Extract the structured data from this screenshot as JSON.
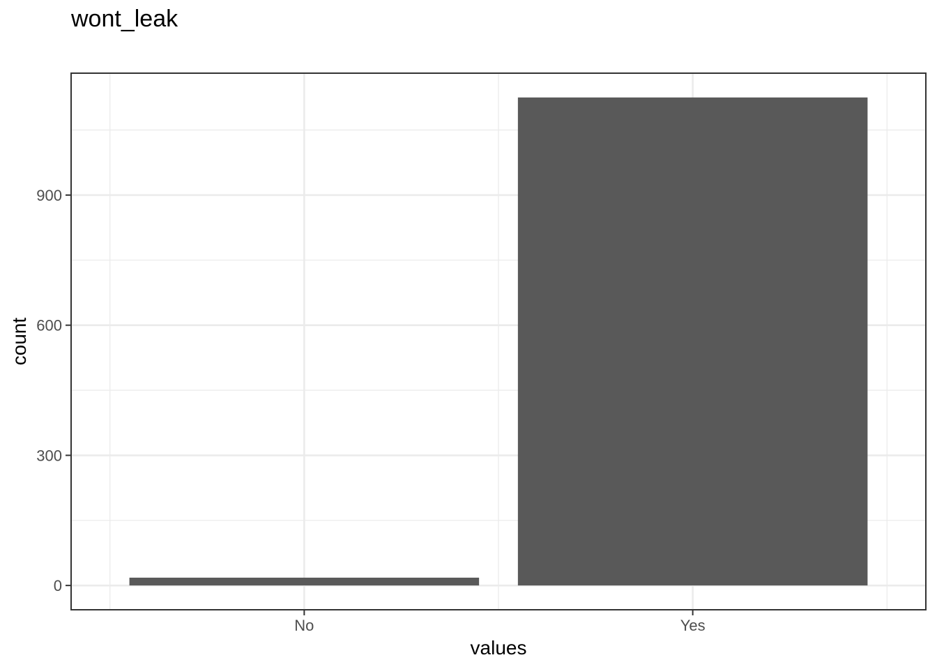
{
  "chart_data": {
    "type": "bar",
    "title": "wont_leak",
    "xlabel": "values",
    "ylabel": "count",
    "categories": [
      "No",
      "Yes"
    ],
    "values": [
      18,
      1125
    ],
    "yticks": [
      0,
      300,
      600,
      900
    ],
    "ylim": [
      -56,
      1181
    ],
    "grid": true,
    "legend": "none",
    "bar_color": "#595959"
  }
}
